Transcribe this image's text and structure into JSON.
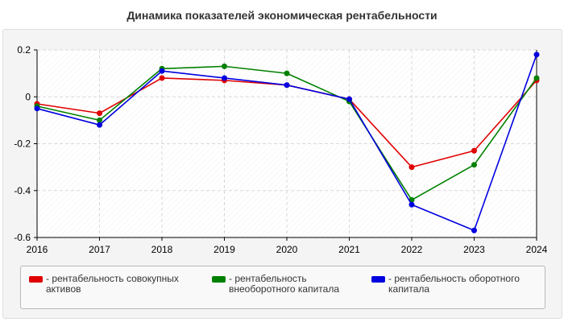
{
  "chart_data": {
    "type": "line",
    "title": "Динамика показателей экономическая рентабельности",
    "xlabel": "",
    "ylabel": "",
    "categories": [
      "2016",
      "2017",
      "2018",
      "2019",
      "2020",
      "2021",
      "2022",
      "2023",
      "2024"
    ],
    "ylim": [
      -0.6,
      0.2
    ],
    "y_ticks": [
      0.2,
      0,
      -0.2,
      -0.4,
      -0.6
    ],
    "y_tick_labels": [
      "0.2",
      "0",
      "-0.2",
      "-0.4",
      "-0.6"
    ],
    "grid": true,
    "legend_position": "bottom",
    "series": [
      {
        "name": "- рентабельность совокупных активов",
        "legend_label": "- рентабельность совокупных активов",
        "color": "#e00000",
        "values": [
          -0.03,
          -0.07,
          0.08,
          0.07,
          0.05,
          -0.01,
          -0.3,
          -0.23,
          0.07
        ]
      },
      {
        "name": "- рентабельность внеоборотного капитала",
        "legend_label": "- рентабельность внеоборотного капитала",
        "color": "#008000",
        "values": [
          -0.04,
          -0.1,
          0.12,
          0.13,
          0.1,
          -0.02,
          -0.44,
          -0.29,
          0.08
        ]
      },
      {
        "name": "- рентабельность оборотного капитала",
        "legend_label": "- рентабельность оборотного капитала",
        "color": "#0000e0",
        "values": [
          -0.05,
          -0.12,
          0.11,
          0.08,
          0.05,
          -0.01,
          -0.46,
          -0.57,
          0.18
        ]
      }
    ]
  }
}
